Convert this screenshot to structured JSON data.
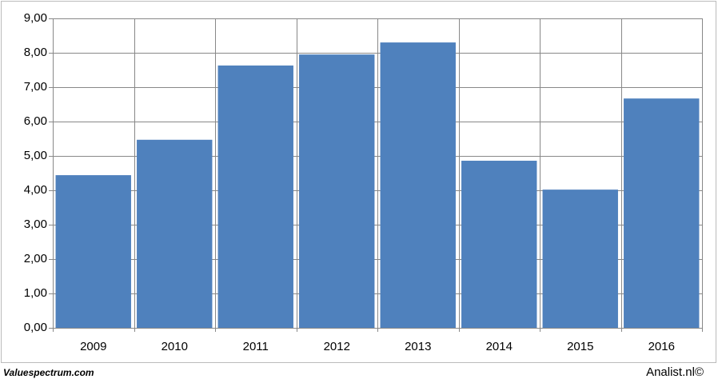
{
  "chart_data": {
    "type": "bar",
    "categories": [
      "2009",
      "2010",
      "2011",
      "2012",
      "2013",
      "2014",
      "2015",
      "2016"
    ],
    "values": [
      4.44,
      5.47,
      7.63,
      7.95,
      8.3,
      4.86,
      4.02,
      6.67
    ],
    "color": "#4f81bd",
    "ylim": [
      0,
      9
    ],
    "yticks": [
      {
        "value": 0,
        "label": "0,00"
      },
      {
        "value": 1,
        "label": "1,00"
      },
      {
        "value": 2,
        "label": "2,00"
      },
      {
        "value": 3,
        "label": "3,00"
      },
      {
        "value": 4,
        "label": "4,00"
      },
      {
        "value": 5,
        "label": "5,00"
      },
      {
        "value": 6,
        "label": "6,00"
      },
      {
        "value": 7,
        "label": "7,00"
      },
      {
        "value": 8,
        "label": "8,00"
      },
      {
        "value": 9,
        "label": "9,00"
      }
    ],
    "grid": true,
    "footer_left": "Valuespectrum.com",
    "footer_right": "Analist.nl©"
  }
}
